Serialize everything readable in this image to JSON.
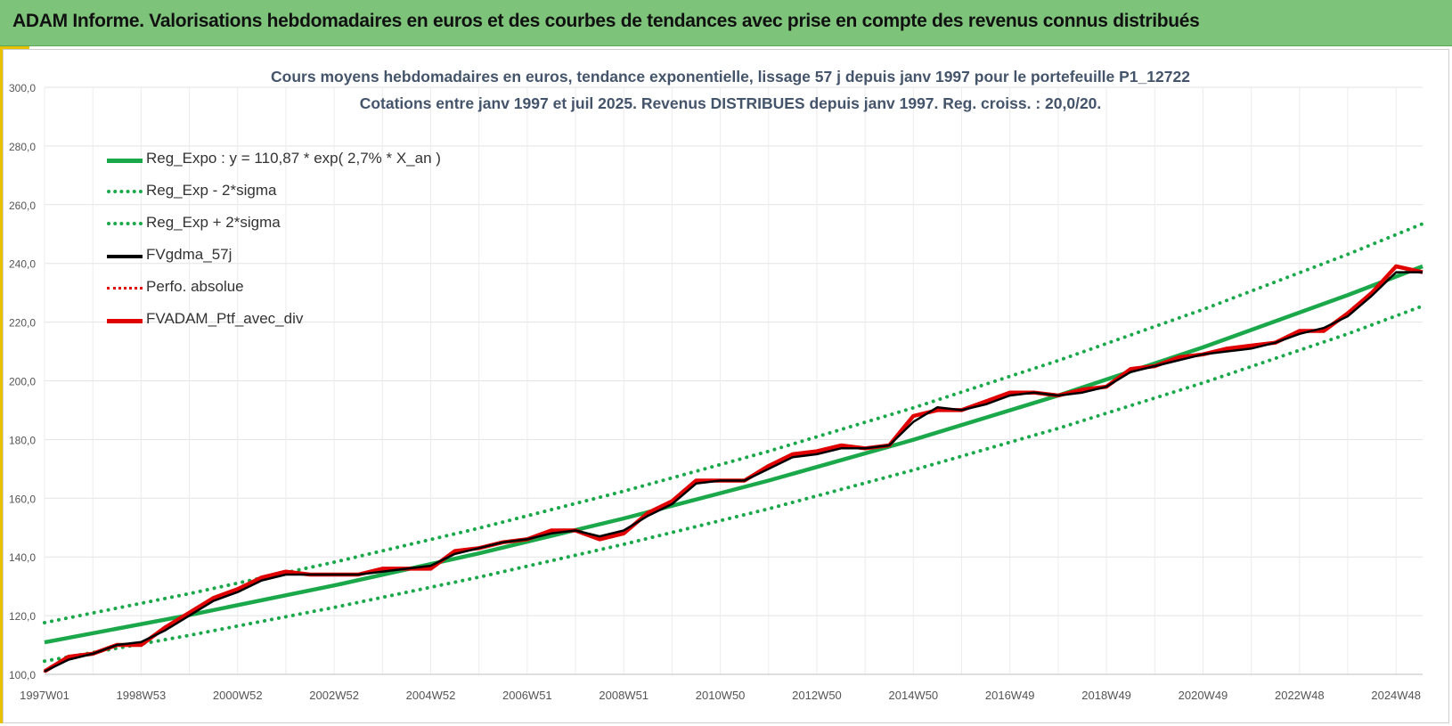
{
  "header": {
    "title": "ADAM Informe. Valorisations hebdomadaires en euros et des courbes de tendances avec prise en compte des revenus connus distribués"
  },
  "colors": {
    "header_bg": "#7dc47a",
    "accent": "#e8c200",
    "trend": "#1aa84a",
    "smooth": "#000000",
    "perf": "#e00000"
  },
  "chart_data": {
    "type": "line",
    "title": "Cours moyens hebdomadaires  en euros, tendance exponentielle, lissage 57 j depuis janv 1997 pour le portefeuille P1_12722",
    "subtitle": "Cotations  entre janv 1997 et juil 2025. Revenus DISTRIBUES depuis janv 1997. Reg. croiss. : 20,0/20.",
    "x_range": [
      1997.0,
      2025.55
    ],
    "ylim": [
      100,
      300
    ],
    "y_ticks": [
      "100,0",
      "120,0",
      "140,0",
      "160,0",
      "180,0",
      "200,0",
      "220,0",
      "240,0",
      "260,0",
      "280,0",
      "300,0"
    ],
    "x_ticks": [
      {
        "label": "1997W01",
        "x": 1997.0
      },
      {
        "label": "1998W53",
        "x": 1999.0
      },
      {
        "label": "2000W52",
        "x": 2001.0
      },
      {
        "label": "2002W52",
        "x": 2003.0
      },
      {
        "label": "2004W52",
        "x": 2005.0
      },
      {
        "label": "2006W51",
        "x": 2007.0
      },
      {
        "label": "2008W51",
        "x": 2009.0
      },
      {
        "label": "2010W50",
        "x": 2011.0
      },
      {
        "label": "2012W50",
        "x": 2013.0
      },
      {
        "label": "2014W50",
        "x": 2015.0
      },
      {
        "label": "2016W49",
        "x": 2017.0
      },
      {
        "label": "2018W49",
        "x": 2019.0
      },
      {
        "label": "2020W49",
        "x": 2021.0
      },
      {
        "label": "2022W48",
        "x": 2023.0
      },
      {
        "label": "2024W48",
        "x": 2025.0
      }
    ],
    "grid": true,
    "legend_position": "top-left",
    "series": [
      {
        "name": "Reg_Expo : y = 110,87 * exp( 2,7% *  X_an )",
        "style": "solid-thick",
        "color": "#1aa84a",
        "x": [
          1997.0,
          2000.0,
          2003.0,
          2006.0,
          2009.0,
          2012.0,
          2015.0,
          2018.0,
          2021.0,
          2024.0,
          2025.55
        ],
        "values": [
          110.9,
          120.2,
          130.3,
          141.2,
          153.1,
          166.0,
          179.9,
          195.0,
          211.4,
          229.2,
          239.0
        ]
      },
      {
        "name": "Reg_Exp - 2*sigma",
        "style": "dotted",
        "color": "#1aa84a",
        "x": [
          1997.0,
          2000.0,
          2003.0,
          2006.0,
          2009.0,
          2012.0,
          2015.0,
          2018.0,
          2021.0,
          2024.0,
          2025.55
        ],
        "values": [
          104.5,
          113.3,
          122.8,
          133.1,
          144.3,
          156.4,
          169.6,
          183.8,
          199.3,
          216.0,
          225.5
        ]
      },
      {
        "name": "Reg_Exp + 2*sigma",
        "style": "dotted",
        "color": "#1aa84a",
        "x": [
          1997.0,
          2000.0,
          2003.0,
          2006.0,
          2009.0,
          2012.0,
          2015.0,
          2018.0,
          2021.0,
          2024.0,
          2025.55
        ],
        "values": [
          117.6,
          127.5,
          138.2,
          149.8,
          162.4,
          176.0,
          190.8,
          206.9,
          224.3,
          243.1,
          253.5
        ]
      },
      {
        "name": "FVgdma_57j",
        "style": "solid-thin",
        "color": "#000000",
        "x": [
          1997.0,
          1997.5,
          1998.0,
          1998.5,
          1999.0,
          1999.5,
          2000.0,
          2000.5,
          2001.0,
          2001.5,
          2002.0,
          2002.5,
          2003.0,
          2003.5,
          2004.0,
          2004.5,
          2005.0,
          2005.5,
          2006.0,
          2006.5,
          2007.0,
          2007.5,
          2008.0,
          2008.5,
          2009.0,
          2009.5,
          2010.0,
          2010.5,
          2011.0,
          2011.5,
          2012.0,
          2012.5,
          2013.0,
          2013.5,
          2014.0,
          2014.5,
          2015.0,
          2015.5,
          2016.0,
          2016.5,
          2017.0,
          2017.5,
          2018.0,
          2018.5,
          2019.0,
          2019.5,
          2020.0,
          2020.5,
          2021.0,
          2021.5,
          2022.0,
          2022.5,
          2023.0,
          2023.5,
          2024.0,
          2024.5,
          2025.0,
          2025.55
        ],
        "values": [
          101,
          105,
          107,
          110,
          111,
          115,
          120,
          125,
          128,
          132,
          134,
          134,
          134,
          134,
          135,
          136,
          137,
          141,
          143,
          145,
          146,
          148,
          149,
          147,
          149,
          154,
          158,
          165,
          166,
          166,
          170,
          174,
          175,
          177,
          177,
          178,
          186,
          191,
          190,
          192,
          195,
          196,
          195,
          196,
          198,
          203,
          205,
          207,
          209,
          210,
          211,
          213,
          216,
          218,
          222,
          229,
          237,
          237
        ]
      },
      {
        "name": "Perfo. absolue",
        "style": "dotted",
        "color": "#e00000",
        "x": [
          1997.0,
          1997.5,
          1998.0,
          1998.5,
          1999.0,
          1999.5,
          2000.0,
          2000.5,
          2001.0,
          2001.5,
          2002.0,
          2002.5,
          2003.0,
          2003.5,
          2004.0,
          2004.5,
          2005.0,
          2005.5,
          2006.0,
          2006.5,
          2007.0,
          2007.5,
          2008.0,
          2008.5,
          2009.0,
          2009.5,
          2010.0,
          2010.5,
          2011.0,
          2011.5,
          2012.0,
          2012.5,
          2013.0,
          2013.5,
          2014.0,
          2014.5,
          2015.0,
          2015.5,
          2016.0,
          2016.5,
          2017.0,
          2017.5,
          2018.0,
          2018.5,
          2019.0,
          2019.5,
          2020.0,
          2020.5,
          2021.0,
          2021.5,
          2022.0,
          2022.5,
          2023.0,
          2023.5,
          2024.0,
          2024.5,
          2025.0,
          2025.55
        ],
        "values": [
          101,
          106,
          107,
          110,
          110,
          116,
          121,
          126,
          129,
          133,
          135,
          134,
          134,
          134,
          136,
          136,
          136,
          142,
          143,
          145,
          146,
          149,
          149,
          146,
          148,
          155,
          159,
          166,
          166,
          166,
          171,
          175,
          176,
          178,
          177,
          178,
          188,
          190,
          190,
          193,
          196,
          196,
          195,
          197,
          198,
          204,
          205,
          208,
          209,
          211,
          212,
          213,
          217,
          217,
          223,
          230,
          239,
          237
        ]
      },
      {
        "name": "FVADAM_Ptf_avec_div",
        "style": "solid-thick",
        "color": "#e00000",
        "x": [
          1997.0,
          1997.5,
          1998.0,
          1998.5,
          1999.0,
          1999.5,
          2000.0,
          2000.5,
          2001.0,
          2001.5,
          2002.0,
          2002.5,
          2003.0,
          2003.5,
          2004.0,
          2004.5,
          2005.0,
          2005.5,
          2006.0,
          2006.5,
          2007.0,
          2007.5,
          2008.0,
          2008.5,
          2009.0,
          2009.5,
          2010.0,
          2010.5,
          2011.0,
          2011.5,
          2012.0,
          2012.5,
          2013.0,
          2013.5,
          2014.0,
          2014.5,
          2015.0,
          2015.5,
          2016.0,
          2016.5,
          2017.0,
          2017.5,
          2018.0,
          2018.5,
          2019.0,
          2019.5,
          2020.0,
          2020.5,
          2021.0,
          2021.5,
          2022.0,
          2022.5,
          2023.0,
          2023.5,
          2024.0,
          2024.5,
          2025.0,
          2025.55
        ],
        "values": [
          101,
          106,
          107,
          110,
          110,
          116,
          121,
          126,
          129,
          133,
          135,
          134,
          134,
          134,
          136,
          136,
          136,
          142,
          143,
          145,
          146,
          149,
          149,
          146,
          148,
          155,
          159,
          166,
          166,
          166,
          171,
          175,
          176,
          178,
          177,
          178,
          188,
          190,
          190,
          193,
          196,
          196,
          195,
          197,
          198,
          204,
          205,
          208,
          209,
          211,
          212,
          213,
          217,
          217,
          223,
          230,
          239,
          237
        ]
      }
    ]
  }
}
